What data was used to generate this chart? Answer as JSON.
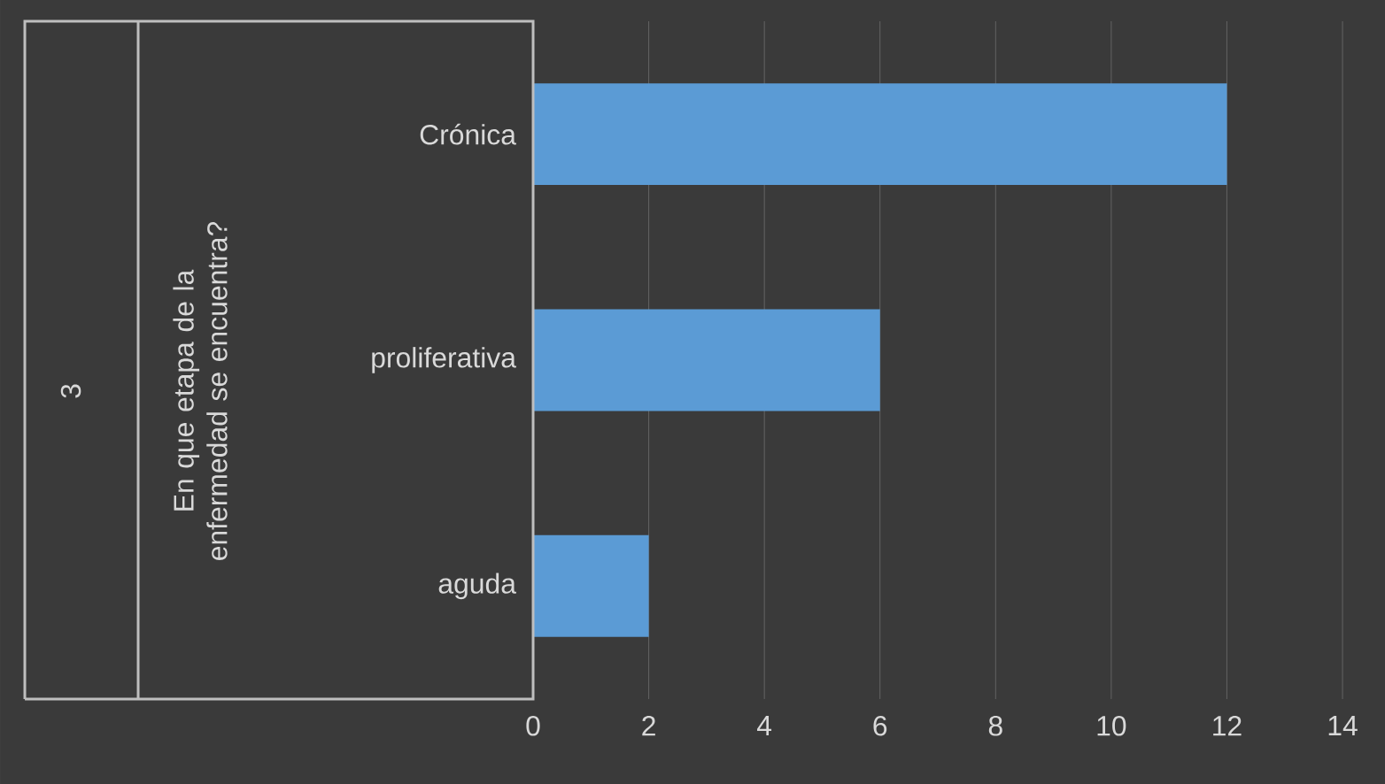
{
  "chart_data": {
    "type": "bar",
    "orientation": "horizontal",
    "categories": [
      "Crónica",
      "proliferativa",
      "aguda"
    ],
    "values": [
      12,
      6,
      2
    ],
    "color": "#5b9bd5",
    "xlim": [
      0,
      14
    ],
    "xticks": [
      0,
      2,
      4,
      6,
      8,
      10,
      12,
      14
    ],
    "grid": "x",
    "annotations": [
      "3",
      "En que etapa de la enfermedad se encuentra?"
    ]
  }
}
